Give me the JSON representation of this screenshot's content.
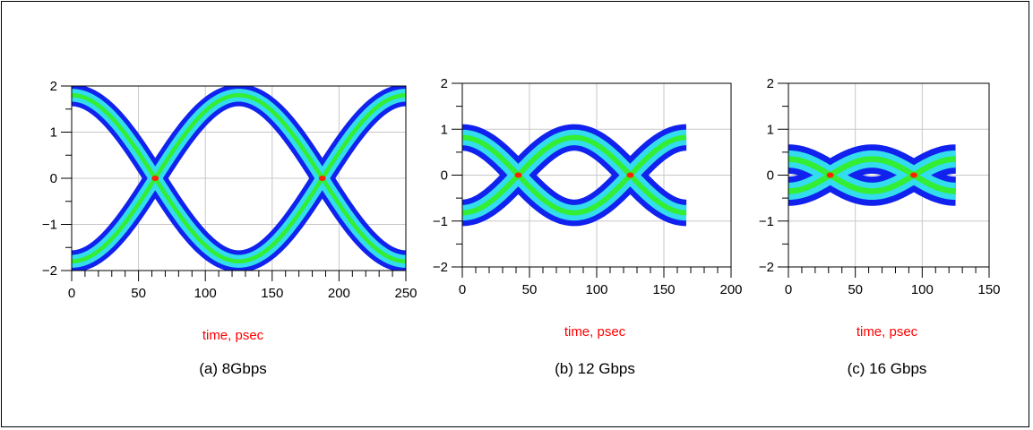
{
  "chart_data": [
    {
      "type": "line",
      "caption": "(a) 8Gbps",
      "xlabel": "time, psec",
      "ylabel": "",
      "xlim": [
        0,
        250
      ],
      "ylim": [
        -2,
        2
      ],
      "xticks": [
        0,
        50,
        100,
        150,
        200,
        250
      ],
      "yticks": [
        -2,
        -1,
        0,
        1,
        2
      ],
      "grid": true,
      "unit_interval_ps": 125,
      "eye_amplitude": 1.8,
      "eye_spread": 0.2,
      "data_end_ps": 250,
      "crossings": [
        {
          "x": 62.5,
          "y": 0
        },
        {
          "x": 187.5,
          "y": 0
        }
      ],
      "colors": {
        "outer": "#1122ee",
        "inner": "#33ddee",
        "core": "#33ee33",
        "peak": "#ff2200"
      }
    },
    {
      "type": "line",
      "caption": "(b) 12 Gbps",
      "xlabel": "time, psec",
      "ylabel": "",
      "xlim": [
        0,
        200
      ],
      "ylim": [
        -2,
        2
      ],
      "xticks": [
        0,
        50,
        100,
        150,
        200
      ],
      "yticks": [
        -2,
        -1,
        0,
        1,
        2
      ],
      "grid": true,
      "unit_interval_ps": 83.3,
      "eye_amplitude": 0.82,
      "eye_spread": 0.25,
      "data_end_ps": 166.7,
      "crossings": [
        {
          "x": 41.7,
          "y": 0
        },
        {
          "x": 125,
          "y": 0
        }
      ],
      "colors": {
        "outer": "#1122ee",
        "inner": "#33ddee",
        "core": "#33ee33",
        "peak": "#ff2200"
      }
    },
    {
      "type": "line",
      "caption": "(c) 16 Gbps",
      "xlabel": "time, psec",
      "ylabel": "",
      "xlim": [
        0,
        150
      ],
      "ylim": [
        -2,
        2
      ],
      "xticks": [
        0,
        50,
        100,
        150
      ],
      "yticks": [
        -2,
        -1,
        0,
        1,
        2
      ],
      "grid": true,
      "unit_interval_ps": 62.5,
      "eye_amplitude": 0.35,
      "eye_spread": 0.28,
      "data_end_ps": 125,
      "crossings": [
        {
          "x": 31.25,
          "y": 0
        },
        {
          "x": 93.75,
          "y": 0
        }
      ],
      "colors": {
        "outer": "#1122ee",
        "inner": "#33ddee",
        "core": "#33ee33",
        "peak": "#ff2200"
      }
    }
  ]
}
